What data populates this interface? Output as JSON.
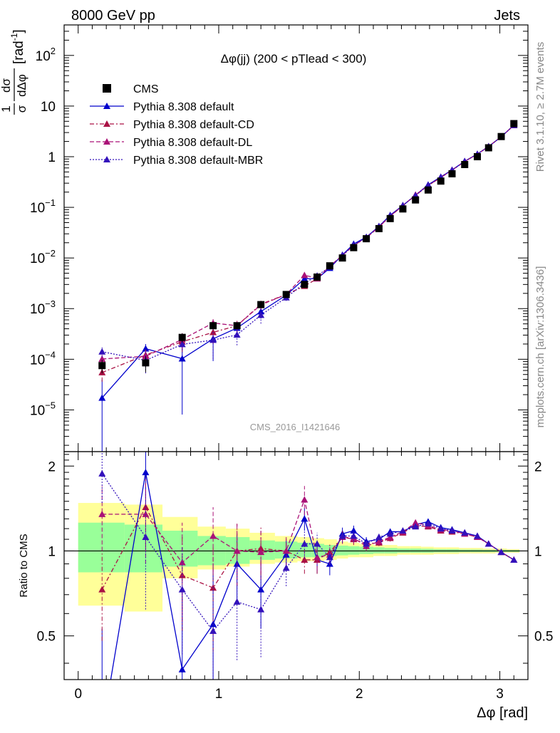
{
  "header": {
    "left": "8000 GeV pp",
    "right": "Jets",
    "side_top": "Rivet 3.1.10, ≥ 2.7M events",
    "side_bottom": "mcplots.cern.ch [arXiv:1306.3436]"
  },
  "chart_data": {
    "type": "line",
    "title": "Δφ(jj) (200 < pTlead <  300)",
    "watermark": "CMS_2016_I1421646",
    "xlabel": "Δφ [rad]",
    "ylabel": "1/σ dσ/dΔφ [rad⁻¹]",
    "ylabel_parts": {
      "num": "1",
      "den": "σ",
      "num2": "dσ",
      "den2": "dΔφ",
      "unit": "[rad",
      "unit_exp": "-1",
      "unit_close": "]"
    },
    "ratio_ylabel": "Ratio to CMS",
    "xlim": [
      -0.1,
      3.2
    ],
    "ylim": [
      1.5e-06,
      400
    ],
    "yscale": "log",
    "ratio_ylim": [
      0.35,
      2.25
    ],
    "x_ticks": [
      0,
      1,
      2,
      3
    ],
    "x_tick_labels": [
      "0",
      "1",
      "2",
      "3"
    ],
    "y_ticks": [
      {
        "value": 1e-05,
        "base": "10",
        "exp": "−5"
      },
      {
        "value": 0.0001,
        "base": "10",
        "exp": "−4"
      },
      {
        "value": 0.001,
        "base": "10",
        "exp": "−3"
      },
      {
        "value": 0.01,
        "base": "10",
        "exp": "−2"
      },
      {
        "value": 0.1,
        "base": "10",
        "exp": "−1"
      },
      {
        "value": 1,
        "base": "1",
        "exp": ""
      },
      {
        "value": 10,
        "base": "10",
        "exp": ""
      },
      {
        "value": 100,
        "base": "10",
        "exp": "2"
      }
    ],
    "ratio_ticks": [
      {
        "value": 0.5,
        "label": "0.5"
      },
      {
        "value": 1,
        "label": "1"
      },
      {
        "value": 2,
        "label": "2"
      }
    ],
    "x": [
      0.17,
      0.48,
      0.74,
      0.96,
      1.13,
      1.3,
      1.48,
      1.61,
      1.7,
      1.79,
      1.88,
      1.96,
      2.05,
      2.14,
      2.22,
      2.31,
      2.4,
      2.49,
      2.58,
      2.66,
      2.75,
      2.84,
      2.92,
      3.01,
      3.1
    ],
    "data": {
      "name": "CMS",
      "values": [
        7.5e-05,
        8.5e-05,
        0.00027,
        0.00046,
        0.00046,
        0.0012,
        0.0019,
        0.003,
        0.0042,
        0.007,
        0.01,
        0.016,
        0.024,
        0.038,
        0.06,
        0.093,
        0.14,
        0.22,
        0.33,
        0.46,
        0.7,
        1.0,
        1.5,
        2.5,
        4.5
      ],
      "color": "#000000"
    },
    "band_outer": [
      {
        "x0": 0.0,
        "x1": 0.33,
        "lo": 0.64,
        "hi": 1.48
      },
      {
        "x0": 0.33,
        "x1": 0.6,
        "lo": 0.61,
        "hi": 1.46
      },
      {
        "x0": 0.6,
        "x1": 0.85,
        "lo": 0.8,
        "hi": 1.32
      },
      {
        "x0": 0.85,
        "x1": 1.05,
        "lo": 0.86,
        "hi": 1.22
      },
      {
        "x0": 1.05,
        "x1": 1.22,
        "lo": 0.88,
        "hi": 1.2
      },
      {
        "x0": 1.22,
        "x1": 1.4,
        "lo": 0.9,
        "hi": 1.16
      },
      {
        "x0": 1.4,
        "x1": 1.56,
        "lo": 0.91,
        "hi": 1.13
      },
      {
        "x0": 1.56,
        "x1": 1.66,
        "lo": 0.92,
        "hi": 1.12
      },
      {
        "x0": 1.66,
        "x1": 1.75,
        "lo": 0.92,
        "hi": 1.11
      },
      {
        "x0": 1.75,
        "x1": 1.84,
        "lo": 0.93,
        "hi": 1.1
      },
      {
        "x0": 1.84,
        "x1": 1.92,
        "lo": 0.94,
        "hi": 1.08
      },
      {
        "x0": 1.92,
        "x1": 2.0,
        "lo": 0.95,
        "hi": 1.07
      },
      {
        "x0": 2.0,
        "x1": 2.1,
        "lo": 0.95,
        "hi": 1.06
      },
      {
        "x0": 2.1,
        "x1": 2.18,
        "lo": 0.96,
        "hi": 1.05
      },
      {
        "x0": 2.18,
        "x1": 2.27,
        "lo": 0.96,
        "hi": 1.05
      },
      {
        "x0": 2.27,
        "x1": 2.36,
        "lo": 0.97,
        "hi": 1.04
      },
      {
        "x0": 2.36,
        "x1": 2.44,
        "lo": 0.97,
        "hi": 1.04
      },
      {
        "x0": 2.44,
        "x1": 2.53,
        "lo": 0.97,
        "hi": 1.035
      },
      {
        "x0": 2.53,
        "x1": 2.62,
        "lo": 0.975,
        "hi": 1.03
      },
      {
        "x0": 2.62,
        "x1": 2.71,
        "lo": 0.975,
        "hi": 1.03
      },
      {
        "x0": 2.71,
        "x1": 2.79,
        "lo": 0.98,
        "hi": 1.025
      },
      {
        "x0": 2.79,
        "x1": 2.88,
        "lo": 0.98,
        "hi": 1.025
      },
      {
        "x0": 2.88,
        "x1": 2.97,
        "lo": 0.98,
        "hi": 1.02
      },
      {
        "x0": 2.97,
        "x1": 3.05,
        "lo": 0.985,
        "hi": 1.02
      },
      {
        "x0": 3.05,
        "x1": 3.14,
        "lo": 0.985,
        "hi": 1.015
      }
    ],
    "band_inner": [
      {
        "x0": 0.0,
        "x1": 0.33,
        "lo": 0.84,
        "hi": 1.26
      },
      {
        "x0": 0.33,
        "x1": 0.6,
        "lo": 0.84,
        "hi": 1.24
      },
      {
        "x0": 0.6,
        "x1": 0.85,
        "lo": 0.88,
        "hi": 1.18
      },
      {
        "x0": 0.85,
        "x1": 1.05,
        "lo": 0.89,
        "hi": 1.13
      },
      {
        "x0": 1.05,
        "x1": 1.22,
        "lo": 0.9,
        "hi": 1.12
      },
      {
        "x0": 1.22,
        "x1": 1.4,
        "lo": 0.93,
        "hi": 1.09
      },
      {
        "x0": 1.4,
        "x1": 1.56,
        "lo": 0.94,
        "hi": 1.08
      },
      {
        "x0": 1.56,
        "x1": 1.66,
        "lo": 0.95,
        "hi": 1.07
      },
      {
        "x0": 1.66,
        "x1": 1.75,
        "lo": 0.95,
        "hi": 1.06
      },
      {
        "x0": 1.75,
        "x1": 1.84,
        "lo": 0.96,
        "hi": 1.05
      },
      {
        "x0": 1.84,
        "x1": 1.92,
        "lo": 0.965,
        "hi": 1.045
      },
      {
        "x0": 1.92,
        "x1": 2.0,
        "lo": 0.97,
        "hi": 1.04
      },
      {
        "x0": 2.0,
        "x1": 2.1,
        "lo": 0.975,
        "hi": 1.035
      },
      {
        "x0": 2.1,
        "x1": 2.18,
        "lo": 0.98,
        "hi": 1.03
      },
      {
        "x0": 2.18,
        "x1": 2.27,
        "lo": 0.98,
        "hi": 1.025
      },
      {
        "x0": 2.27,
        "x1": 2.36,
        "lo": 0.985,
        "hi": 1.02
      },
      {
        "x0": 2.36,
        "x1": 2.44,
        "lo": 0.985,
        "hi": 1.02
      },
      {
        "x0": 2.44,
        "x1": 2.53,
        "lo": 0.985,
        "hi": 1.018
      },
      {
        "x0": 2.53,
        "x1": 2.62,
        "lo": 0.988,
        "hi": 1.015
      },
      {
        "x0": 2.62,
        "x1": 2.71,
        "lo": 0.988,
        "hi": 1.015
      },
      {
        "x0": 2.71,
        "x1": 2.79,
        "lo": 0.99,
        "hi": 1.012
      },
      {
        "x0": 2.79,
        "x1": 2.88,
        "lo": 0.99,
        "hi": 1.012
      },
      {
        "x0": 2.88,
        "x1": 2.97,
        "lo": 0.99,
        "hi": 1.01
      },
      {
        "x0": 2.97,
        "x1": 3.05,
        "lo": 0.992,
        "hi": 1.01
      },
      {
        "x0": 3.05,
        "x1": 3.14,
        "lo": 0.992,
        "hi": 1.008
      }
    ],
    "band_colors": {
      "outer": "#ffff99",
      "inner": "#99ff99"
    },
    "series": [
      {
        "name": "Pythia 8.308 default",
        "color": "#0000cc",
        "dash": "",
        "ratio": [
          0.23,
          1.9,
          0.38,
          0.55,
          0.9,
          0.73,
          0.97,
          1.3,
          0.93,
          0.9,
          1.15,
          1.18,
          1.08,
          1.1,
          1.17,
          1.17,
          1.24,
          1.27,
          1.21,
          1.19,
          1.16,
          1.13,
          1.06,
          0.99,
          0.93
        ],
        "ratio_err": [
          0.3,
          0.45,
          0.35,
          0.35,
          0.25,
          0.2,
          0.12,
          0.12,
          0.1,
          0.08,
          0.06,
          0.05,
          0.04,
          0.03,
          0.03,
          0.02,
          0.02,
          0.02,
          0.02,
          0.02,
          0.02,
          0.02,
          0.02,
          0.02,
          0.02
        ]
      },
      {
        "name": "Pythia 8.308 default-CD",
        "color": "#aa1144",
        "dash": "6,3,2,3",
        "ratio": [
          0.73,
          1.43,
          0.82,
          0.74,
          1.0,
          1.02,
          1.0,
          0.93,
          0.93,
          0.99,
          1.12,
          1.1,
          1.06,
          1.07,
          1.11,
          1.16,
          1.23,
          1.22,
          1.18,
          1.17,
          1.15,
          1.12,
          1.06,
          0.99,
          0.93
        ],
        "ratio_err": [
          0.25,
          0.4,
          0.3,
          0.3,
          0.25,
          0.2,
          0.12,
          0.1,
          0.1,
          0.08,
          0.06,
          0.05,
          0.04,
          0.03,
          0.03,
          0.02,
          0.02,
          0.02,
          0.02,
          0.02,
          0.02,
          0.02,
          0.02,
          0.02,
          0.02
        ]
      },
      {
        "name": "Pythia 8.308 default-DL",
        "color": "#aa1177",
        "dash": "6,3",
        "ratio": [
          1.35,
          1.35,
          0.91,
          1.13,
          1.0,
          0.99,
          1.0,
          1.52,
          0.95,
          0.97,
          1.12,
          1.11,
          1.04,
          1.08,
          1.12,
          1.17,
          1.26,
          1.23,
          1.19,
          1.18,
          1.15,
          1.12,
          1.06,
          0.99,
          0.93
        ],
        "ratio_err": [
          0.35,
          0.45,
          0.35,
          0.3,
          0.25,
          0.2,
          0.12,
          0.18,
          0.1,
          0.08,
          0.06,
          0.05,
          0.04,
          0.03,
          0.03,
          0.02,
          0.02,
          0.02,
          0.02,
          0.02,
          0.02,
          0.02,
          0.02,
          0.02,
          0.02
        ]
      },
      {
        "name": "Pythia 8.308 default-MBR",
        "color": "#3311bb",
        "dash": "2,2",
        "ratio": [
          1.88,
          1.12,
          0.73,
          0.52,
          0.66,
          0.62,
          0.87,
          1.06,
          1.06,
          0.95,
          1.13,
          1.13,
          1.06,
          1.12,
          1.15,
          1.18,
          1.22,
          1.25,
          1.2,
          1.18,
          1.16,
          1.13,
          1.06,
          0.99,
          0.93
        ],
        "ratio_err": [
          0.4,
          0.5,
          0.3,
          0.3,
          0.25,
          0.2,
          0.12,
          0.12,
          0.1,
          0.08,
          0.06,
          0.05,
          0.04,
          0.03,
          0.03,
          0.02,
          0.02,
          0.02,
          0.02,
          0.02,
          0.02,
          0.02,
          0.02,
          0.02,
          0.02
        ]
      }
    ],
    "data_err": [
      0.3,
      0.35,
      0.2,
      0.15,
      0.12,
      0.1,
      0.07,
      0.06,
      0.05,
      0.05,
      0.04,
      0.03,
      0.03,
      0.03,
      0.02,
      0.02,
      0.02,
      0.02,
      0.02,
      0.02,
      0.02,
      0.02,
      0.02,
      0.02,
      0.02
    ],
    "legend": {
      "placement": "top-left",
      "entries": [
        "CMS",
        "Pythia 8.308 default",
        "Pythia 8.308 default-CD",
        "Pythia 8.308 default-DL",
        "Pythia 8.308 default-MBR"
      ]
    }
  }
}
